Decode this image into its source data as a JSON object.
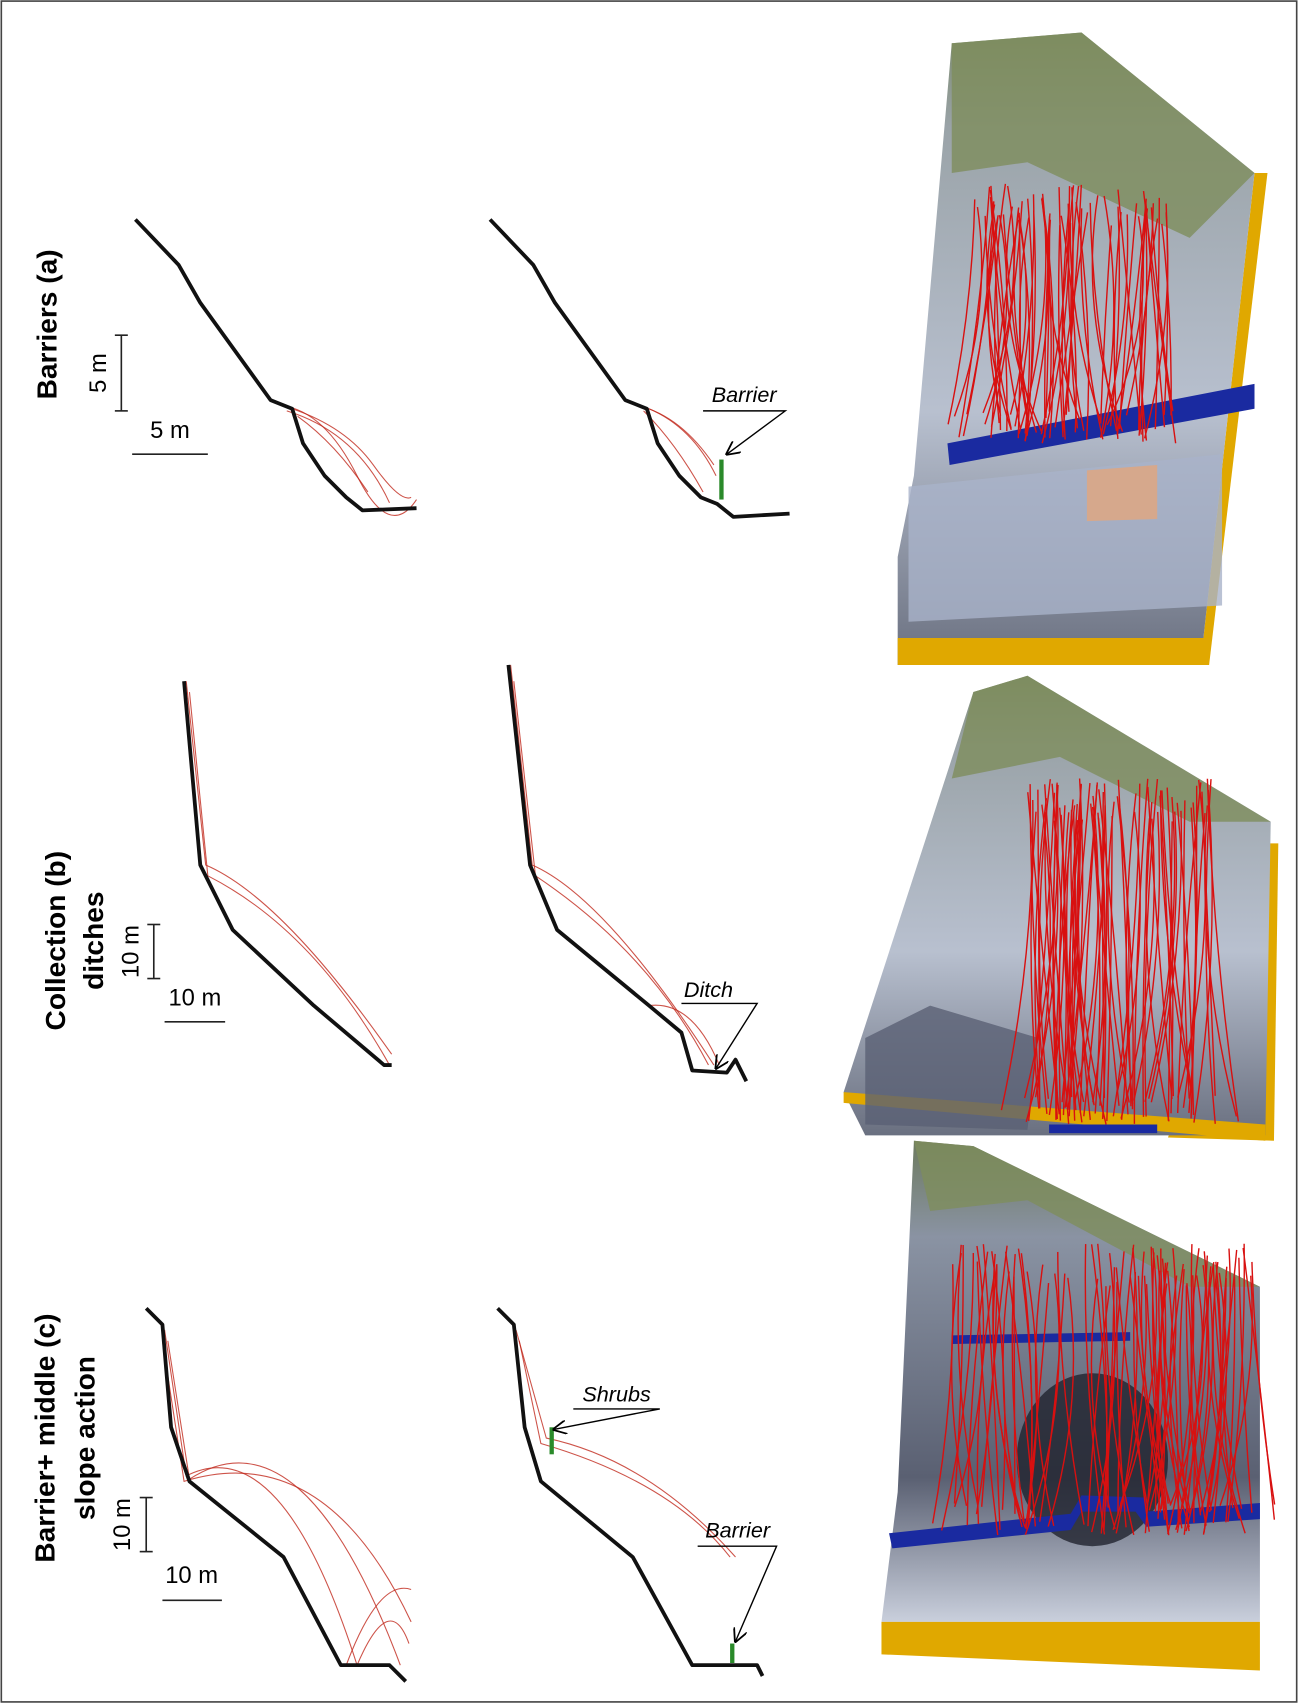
{
  "rows": [
    {
      "label_lines": [
        "Barriers (a)"
      ],
      "scale_vertical": "5 m",
      "scale_horizontal": "5 m",
      "annotations": [
        "Barrier"
      ]
    },
    {
      "label_lines": [
        "Collection (b)",
        "ditches"
      ],
      "scale_vertical": "10 m",
      "scale_horizontal": "10 m",
      "annotations": [
        "Ditch"
      ]
    },
    {
      "label_lines": [
        "Barrier+ middle (c)",
        "slope action"
      ],
      "scale_vertical": "10 m",
      "scale_horizontal": "10 m",
      "annotations": [
        "Shrubs",
        "Barrier"
      ]
    }
  ]
}
